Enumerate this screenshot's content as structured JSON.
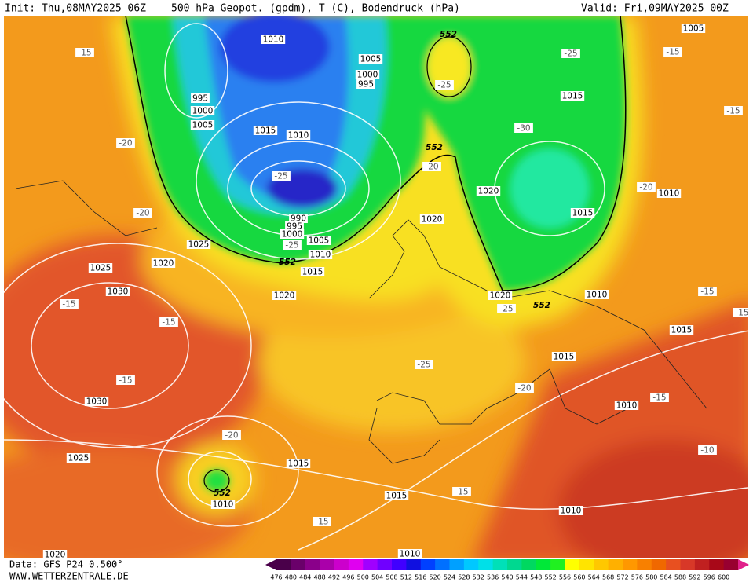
{
  "header": {
    "init": "Init: Thu,08MAY2025 06Z",
    "title": "500 hPa Geopot. (gpdm), T (C), Bodendruck (hPa)",
    "valid": "Valid: Fri,09MAY2025 00Z"
  },
  "footer": {
    "data_source": "Data: GFS P24 0.500°",
    "website": "WWW.WETTERZENTRALE.DE"
  },
  "colorscale": {
    "values": [
      476,
      480,
      484,
      488,
      492,
      496,
      500,
      504,
      508,
      512,
      516,
      520,
      524,
      528,
      532,
      536,
      540,
      544,
      548,
      552,
      556,
      560,
      564,
      568,
      572,
      576,
      580,
      584,
      588,
      592,
      596,
      600
    ],
    "colors": [
      "#4a004a",
      "#6a006a",
      "#8a008a",
      "#aa00aa",
      "#cc00cc",
      "#e000f0",
      "#a000ff",
      "#7000ff",
      "#4000ff",
      "#1010e0",
      "#0040ff",
      "#0070ff",
      "#00a0ff",
      "#00c8ff",
      "#00e0e8",
      "#00e0b8",
      "#00d890",
      "#00d860",
      "#00e838",
      "#20f020",
      "#ffff00",
      "#ffe400",
      "#ffc800",
      "#ffb000",
      "#ff9800",
      "#f88000",
      "#f06800",
      "#e85020",
      "#d83828",
      "#c02020",
      "#a80818",
      "#980030"
    ]
  },
  "map": {
    "isobar_labels": [
      "1010",
      "1005",
      "1000",
      "995",
      "995",
      "1000",
      "1005",
      "1015",
      "1010",
      "1020",
      "1015",
      "990",
      "995",
      "1000",
      "1005",
      "1010",
      "1025",
      "1020",
      "1025",
      "1015",
      "1020",
      "1030",
      "1030",
      "1025",
      "1015",
      "1010",
      "1015",
      "1010",
      "1010",
      "1015",
      "1015",
      "1010",
      "1020",
      "1020",
      "1015",
      "1005",
      "1010",
      "1020",
      "1010"
    ],
    "temperature_labels": [
      "-15",
      "-20",
      "-20",
      "-15",
      "-15",
      "-15",
      "-20",
      "-25",
      "-30",
      "-25",
      "-15",
      "-15",
      "-20",
      "-20",
      "-25",
      "-25",
      "-25",
      "-25",
      "-20",
      "-15",
      "-10",
      "-15",
      "-15",
      "-15",
      "-15"
    ],
    "geopotential_labels": [
      "552",
      "552",
      "552",
      "552",
      "552"
    ]
  }
}
